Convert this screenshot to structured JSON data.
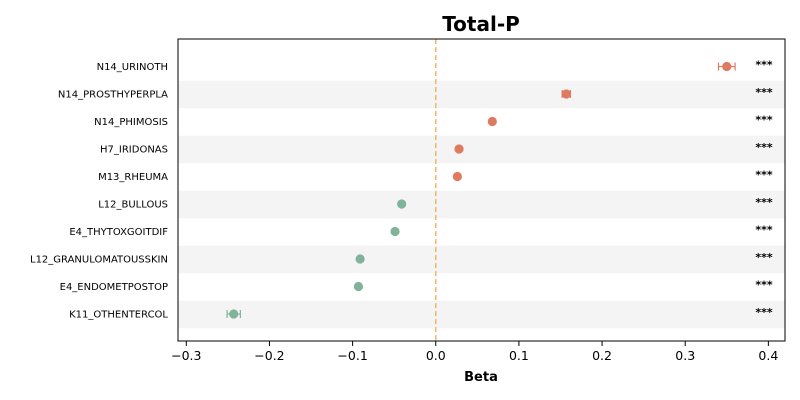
{
  "chart_data": {
    "type": "scatter",
    "orientation": "horizontal-forest",
    "title": "Total-P",
    "xlabel": "Beta",
    "ylabel": "",
    "xlim": [
      -0.31,
      0.42
    ],
    "xticks": [
      -0.3,
      -0.2,
      -0.1,
      0.0,
      0.1,
      0.2,
      0.3,
      0.4
    ],
    "xtick_labels": [
      "−0.3",
      "−0.2",
      "−0.1",
      "0.0",
      "0.1",
      "0.2",
      "0.3",
      "0.4"
    ],
    "reference_line": 0.0,
    "grid": false,
    "alternating_row_shading": true,
    "colors": {
      "positive": "#e07a5f",
      "negative": "#81b29a",
      "reference_line": "#f4b860",
      "row_shade": "#f4f4f4"
    },
    "points": [
      {
        "label": "N14_URINOTH",
        "beta": 0.35,
        "ci_low": 0.34,
        "ci_high": 0.36,
        "significance": "***"
      },
      {
        "label": "N14_PROSTHYPERPLA",
        "beta": 0.157,
        "ci_low": 0.152,
        "ci_high": 0.162,
        "significance": "***"
      },
      {
        "label": "N14_PHIMOSIS",
        "beta": 0.068,
        "ci_low": 0.066,
        "ci_high": 0.07,
        "significance": "***"
      },
      {
        "label": "H7_IRIDONAS",
        "beta": 0.028,
        "ci_low": 0.027,
        "ci_high": 0.029,
        "significance": "***"
      },
      {
        "label": "M13_RHEUMA",
        "beta": 0.026,
        "ci_low": 0.025,
        "ci_high": 0.027,
        "significance": "***"
      },
      {
        "label": "L12_BULLOUS",
        "beta": -0.041,
        "ci_low": -0.042,
        "ci_high": -0.04,
        "significance": "***"
      },
      {
        "label": "E4_THYTOXGOITDIF",
        "beta": -0.049,
        "ci_low": -0.05,
        "ci_high": -0.048,
        "significance": "***"
      },
      {
        "label": "L12_GRANULOMATOUSSKIN",
        "beta": -0.091,
        "ci_low": -0.092,
        "ci_high": -0.09,
        "significance": "***"
      },
      {
        "label": "E4_ENDOMETPOSTOP",
        "beta": -0.093,
        "ci_low": -0.094,
        "ci_high": -0.092,
        "significance": "***"
      },
      {
        "label": "K11_OTHENTERCOL",
        "beta": -0.243,
        "ci_low": -0.251,
        "ci_high": -0.235,
        "significance": "***"
      }
    ]
  }
}
